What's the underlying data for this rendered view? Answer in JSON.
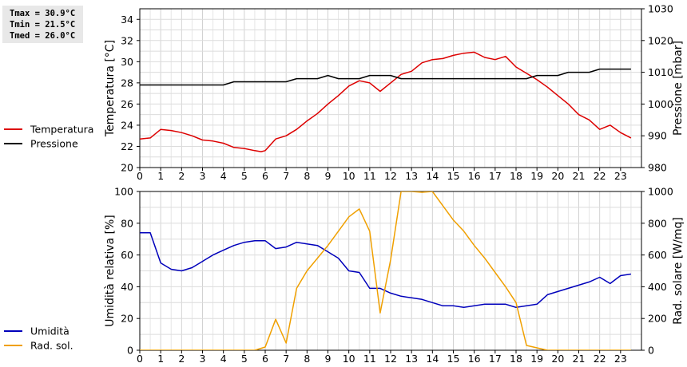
{
  "stats": {
    "tmax": "Tmax = 30.9°C",
    "tmin": "Tmin = 21.5°C",
    "tmed": "Tmed = 26.0°C"
  },
  "chart_data": [
    {
      "type": "line",
      "ylabel": "Temperatura [°C]",
      "y2label": "Pressione [mbar]",
      "ylim": [
        20,
        35
      ],
      "y2lim": [
        980,
        1030
      ],
      "yticks": [
        20,
        22,
        24,
        26,
        28,
        30,
        32,
        34
      ],
      "y2ticks": [
        980,
        990,
        1000,
        1010,
        1020,
        1030
      ],
      "xlim": [
        0,
        24
      ],
      "xticks": [
        "0",
        "1",
        "2",
        "3",
        "4",
        "5",
        "6",
        "7",
        "8",
        "9",
        "10",
        "11",
        "12",
        "13",
        "14",
        "15",
        "16",
        "17",
        "18",
        "19",
        "20",
        "21",
        "22",
        "23"
      ],
      "grid": true,
      "legend_position": "left",
      "colors": {
        "Temperatura": "#dd0000",
        "Pressione": "#000000"
      },
      "series": [
        {
          "name": "Temperatura",
          "axis": "left",
          "x": [
            0,
            0.5,
            1,
            1.5,
            2,
            2.5,
            3,
            3.5,
            4,
            4.5,
            5,
            5.5,
            5.8,
            6,
            6.5,
            7,
            7.5,
            8,
            8.5,
            9,
            9.5,
            10,
            10.5,
            11,
            11.5,
            12,
            12.5,
            13,
            13.5,
            14,
            14.5,
            15,
            15.5,
            16,
            16.5,
            17,
            17.5,
            18,
            18.5,
            19,
            19.5,
            20,
            20.5,
            21,
            21.5,
            22,
            22.5,
            23,
            23.5
          ],
          "values": [
            22.7,
            22.8,
            23.6,
            23.5,
            23.3,
            23.0,
            22.6,
            22.5,
            22.3,
            21.9,
            21.8,
            21.6,
            21.5,
            21.6,
            22.7,
            23.0,
            23.6,
            24.4,
            25.1,
            26.0,
            26.8,
            27.7,
            28.2,
            28.0,
            27.2,
            28.0,
            28.8,
            29.1,
            29.9,
            30.2,
            30.3,
            30.6,
            30.8,
            30.9,
            30.4,
            30.2,
            30.5,
            29.5,
            28.9,
            28.3,
            27.6,
            26.8,
            26.0,
            25.0,
            24.5,
            23.6,
            24.0,
            23.3,
            22.8
          ]
        },
        {
          "name": "Pressione",
          "axis": "right",
          "x": [
            0,
            4,
            4.5,
            7,
            7.5,
            8.5,
            9,
            9.5,
            10,
            10.5,
            11,
            11.5,
            12,
            12.5,
            13,
            18,
            18.5,
            19,
            20,
            20.5,
            21,
            21.5,
            22,
            23,
            23.5
          ],
          "values": [
            1006,
            1006,
            1007,
            1007,
            1008,
            1008,
            1009,
            1008,
            1008,
            1008,
            1009,
            1009,
            1009,
            1008,
            1008,
            1008,
            1008,
            1009,
            1009,
            1010,
            1010,
            1010,
            1011,
            1011,
            1011
          ]
        }
      ]
    },
    {
      "type": "line",
      "ylabel": "Umidità relativa [%]",
      "y2label": "Rad. solare [W/mq]",
      "ylim": [
        0,
        100
      ],
      "y2lim": [
        0,
        1000
      ],
      "yticks": [
        0,
        20,
        40,
        60,
        80,
        100
      ],
      "y2ticks": [
        0,
        200,
        400,
        600,
        800,
        1000
      ],
      "xlim": [
        0,
        24
      ],
      "xticks": [
        "0",
        "1",
        "2",
        "3",
        "4",
        "5",
        "6",
        "7",
        "8",
        "9",
        "10",
        "11",
        "12",
        "13",
        "14",
        "15",
        "16",
        "17",
        "18",
        "19",
        "20",
        "21",
        "22",
        "23"
      ],
      "grid": true,
      "legend_position": "left",
      "colors": {
        "Umidità": "#0000bb",
        "Rad. sol.": "#f0a000"
      },
      "series": [
        {
          "name": "Umidità",
          "axis": "left",
          "x": [
            0,
            0.5,
            1,
            1.5,
            2,
            2.5,
            3,
            3.5,
            4,
            4.5,
            5,
            5.5,
            6,
            6.5,
            7,
            7.5,
            8,
            8.5,
            9,
            9.5,
            10,
            10.5,
            11,
            11.5,
            12,
            12.5,
            13,
            13.5,
            14,
            14.5,
            15,
            15.5,
            16,
            16.5,
            17,
            17.5,
            18,
            18.5,
            19,
            19.5,
            20,
            20.5,
            21,
            21.5,
            22,
            22.5,
            23,
            23.5
          ],
          "values": [
            74,
            74,
            55,
            51,
            50,
            52,
            56,
            60,
            63,
            66,
            68,
            69,
            69,
            64,
            65,
            68,
            67,
            66,
            62,
            58,
            50,
            49,
            39,
            39,
            36,
            34,
            33,
            32,
            30,
            28,
            28,
            27,
            28,
            29,
            29,
            29,
            27,
            28,
            29,
            35,
            37,
            39,
            41,
            43,
            46,
            42,
            47,
            48
          ]
        },
        {
          "name": "Rad. sol.",
          "axis": "right",
          "x": [
            0,
            1,
            2,
            3,
            4,
            5,
            5.5,
            6,
            6.5,
            7,
            7.5,
            8,
            8.5,
            9,
            9.5,
            10,
            10.5,
            11,
            11.5,
            12,
            12.5,
            13,
            13.5,
            14,
            14.5,
            15,
            15.5,
            16,
            16.5,
            17,
            17.5,
            18,
            18.5,
            19,
            19.5,
            20,
            21,
            22,
            23,
            23.5
          ],
          "values": [
            0,
            0,
            0,
            0,
            0,
            0,
            0,
            20,
            195,
            45,
            390,
            500,
            580,
            660,
            750,
            840,
            890,
            750,
            235,
            570,
            1000,
            1010,
            995,
            1010,
            910,
            820,
            750,
            660,
            580,
            490,
            400,
            300,
            30,
            15,
            0,
            0,
            0,
            0,
            0,
            0
          ]
        }
      ]
    }
  ]
}
